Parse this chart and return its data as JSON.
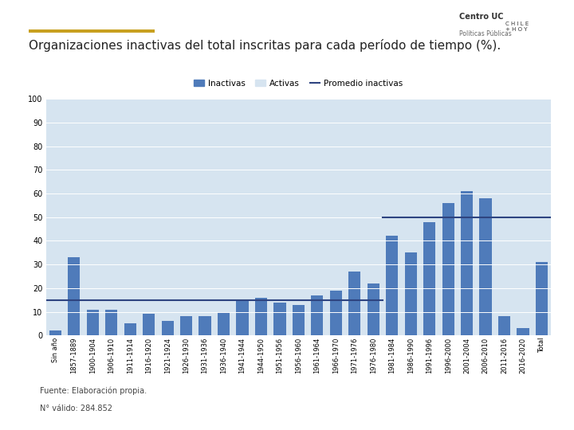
{
  "categories": [
    "Sin año",
    "1857-1889",
    "1900-1904",
    "1906-1910",
    "1911-1914",
    "1916-1920",
    "1921-1924",
    "1926-1930",
    "1931-1936",
    "1936-1940",
    "1941-1944",
    "1944-1950",
    "1951-1956",
    "1956-1960",
    "1961-1964",
    "1966-1970",
    "1971-1976",
    "1976-1980",
    "1981-1984",
    "1986-1990",
    "1991-1996",
    "1996-2000",
    "2001-2004",
    "2006-2010",
    "2011-2016",
    "2016-2020",
    "Total"
  ],
  "inactivas": [
    2,
    33,
    11,
    11,
    5,
    9,
    6,
    8,
    8,
    10,
    15,
    16,
    14,
    13,
    17,
    19,
    27,
    22,
    42,
    35,
    48,
    56,
    61,
    58,
    8,
    3,
    31
  ],
  "promedio_inactivas_low": 15,
  "promedio_inactivas_high": 50,
  "promedio_break_idx": 18,
  "color_inactivas": "#4f7bba",
  "color_activas_stripe": "#d6e4f0",
  "color_bg_stripe": "#e8f0f7",
  "color_promedio": "#2e4480",
  "color_plot_bg": "#eef3f8",
  "title": "Organizaciones inactivas del total inscritas para cada período de tiempo (%).",
  "footnote1": "Fuente: Elaboración propia.",
  "footnote2": "N° válido: 284.852",
  "title_fontsize": 11,
  "background_color": "#ffffff",
  "deco_line_color": "#c8a020",
  "logo_area": true
}
